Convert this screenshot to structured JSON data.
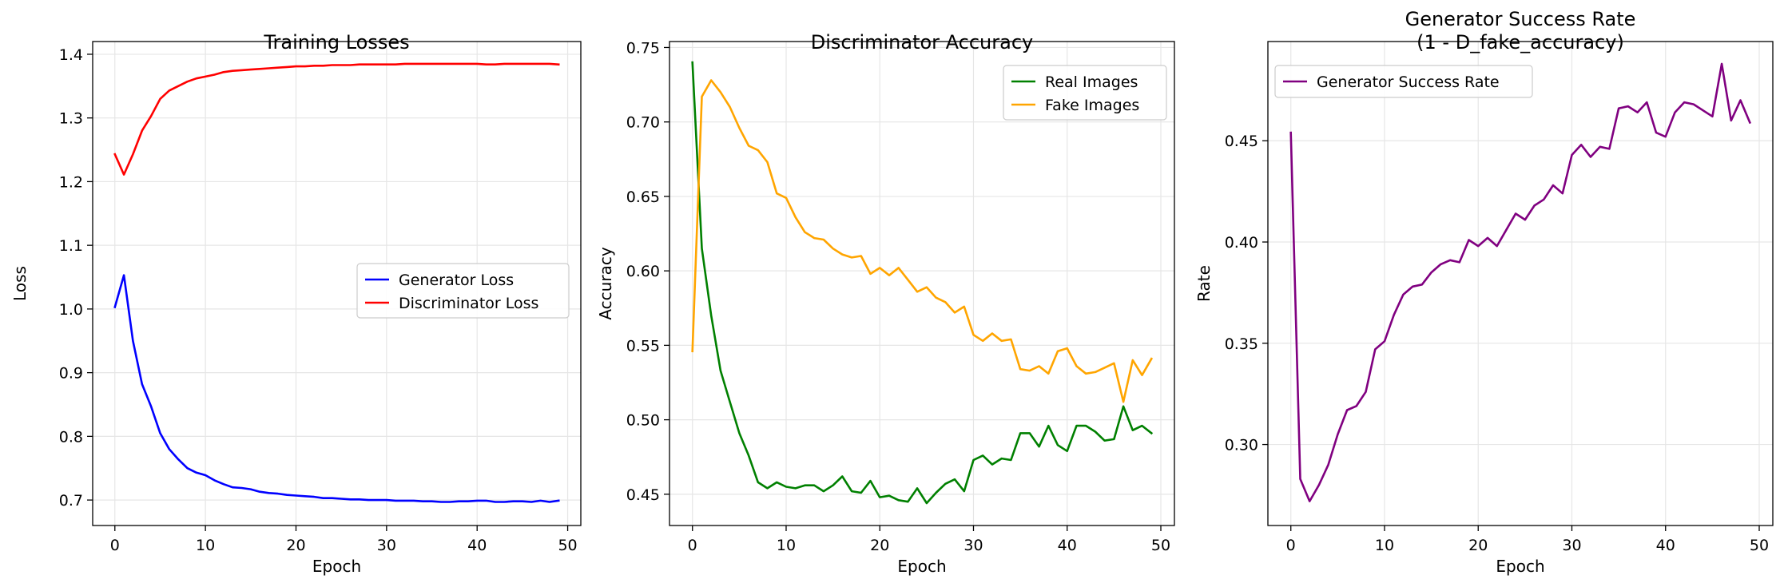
{
  "chart_data": [
    {
      "type": "line",
      "title": "Training Losses",
      "xlabel": "Epoch",
      "ylabel": "Loss",
      "xlim": [
        -2.45,
        51.45
      ],
      "ylim": [
        0.66,
        1.42
      ],
      "xticks": [
        0,
        10,
        20,
        30,
        40,
        50
      ],
      "yticks": [
        0.7,
        0.8,
        0.9,
        1.0,
        1.1,
        1.2,
        1.3,
        1.4
      ],
      "grid": true,
      "legend": "center-right",
      "x": [
        0,
        1,
        2,
        3,
        4,
        5,
        6,
        7,
        8,
        9,
        10,
        11,
        12,
        13,
        14,
        15,
        16,
        17,
        18,
        19,
        20,
        21,
        22,
        23,
        24,
        25,
        26,
        27,
        28,
        29,
        30,
        31,
        32,
        33,
        34,
        35,
        36,
        37,
        38,
        39,
        40,
        41,
        42,
        43,
        44,
        45,
        46,
        47,
        48,
        49
      ],
      "series": [
        {
          "name": "Generator Loss",
          "color": "#0000ff",
          "values": [
            1.003,
            1.053,
            0.95,
            0.882,
            0.847,
            0.805,
            0.78,
            0.764,
            0.75,
            0.743,
            0.739,
            0.731,
            0.725,
            0.72,
            0.719,
            0.717,
            0.713,
            0.711,
            0.71,
            0.708,
            0.707,
            0.706,
            0.705,
            0.703,
            0.703,
            0.702,
            0.701,
            0.701,
            0.7,
            0.7,
            0.7,
            0.699,
            0.699,
            0.699,
            0.698,
            0.698,
            0.697,
            0.697,
            0.698,
            0.698,
            0.699,
            0.699,
            0.697,
            0.697,
            0.698,
            0.698,
            0.697,
            0.699,
            0.697,
            0.699
          ]
        },
        {
          "name": "Discriminator Loss",
          "color": "#ff0000",
          "values": [
            1.243,
            1.211,
            1.243,
            1.28,
            1.303,
            1.33,
            1.343,
            1.35,
            1.357,
            1.362,
            1.365,
            1.368,
            1.372,
            1.374,
            1.375,
            1.376,
            1.377,
            1.378,
            1.379,
            1.38,
            1.381,
            1.381,
            1.382,
            1.382,
            1.383,
            1.383,
            1.383,
            1.384,
            1.384,
            1.384,
            1.384,
            1.384,
            1.385,
            1.385,
            1.385,
            1.385,
            1.385,
            1.385,
            1.385,
            1.385,
            1.385,
            1.384,
            1.384,
            1.385,
            1.385,
            1.385,
            1.385,
            1.385,
            1.385,
            1.384
          ]
        }
      ]
    },
    {
      "type": "line",
      "title": "Discriminator Accuracy",
      "xlabel": "Epoch",
      "ylabel": "Accuracy",
      "xlim": [
        -2.45,
        51.45
      ],
      "ylim": [
        0.429,
        0.754
      ],
      "xticks": [
        0,
        10,
        20,
        30,
        40,
        50
      ],
      "yticks": [
        0.45,
        0.5,
        0.55,
        0.6,
        0.65,
        0.7,
        0.75
      ],
      "grid": true,
      "legend": "top-right",
      "x": [
        0,
        1,
        2,
        3,
        4,
        5,
        6,
        7,
        8,
        9,
        10,
        11,
        12,
        13,
        14,
        15,
        16,
        17,
        18,
        19,
        20,
        21,
        22,
        23,
        24,
        25,
        26,
        27,
        28,
        29,
        30,
        31,
        32,
        33,
        34,
        35,
        36,
        37,
        38,
        39,
        40,
        41,
        42,
        43,
        44,
        45,
        46,
        47,
        48,
        49
      ],
      "series": [
        {
          "name": "Real Images",
          "color": "#008000",
          "values": [
            0.74,
            0.615,
            0.57,
            0.533,
            0.512,
            0.491,
            0.476,
            0.458,
            0.454,
            0.458,
            0.455,
            0.454,
            0.456,
            0.456,
            0.452,
            0.456,
            0.462,
            0.452,
            0.451,
            0.459,
            0.448,
            0.449,
            0.446,
            0.445,
            0.454,
            0.444,
            0.451,
            0.457,
            0.46,
            0.452,
            0.473,
            0.476,
            0.47,
            0.474,
            0.473,
            0.491,
            0.491,
            0.482,
            0.496,
            0.483,
            0.479,
            0.496,
            0.496,
            0.492,
            0.486,
            0.487,
            0.509,
            0.493,
            0.496,
            0.491
          ]
        },
        {
          "name": "Fake Images",
          "color": "#ffa500",
          "values": [
            0.546,
            0.717,
            0.728,
            0.72,
            0.71,
            0.696,
            0.684,
            0.681,
            0.673,
            0.652,
            0.649,
            0.636,
            0.626,
            0.622,
            0.621,
            0.615,
            0.611,
            0.609,
            0.61,
            0.598,
            0.602,
            0.597,
            0.602,
            0.594,
            0.586,
            0.589,
            0.582,
            0.579,
            0.572,
            0.576,
            0.557,
            0.553,
            0.558,
            0.553,
            0.554,
            0.534,
            0.533,
            0.536,
            0.531,
            0.546,
            0.548,
            0.536,
            0.531,
            0.532,
            0.535,
            0.538,
            0.512,
            0.54,
            0.53,
            0.541
          ]
        }
      ]
    },
    {
      "type": "line",
      "title": "Generator Success Rate\n(1 - D_fake_accuracy)",
      "xlabel": "Epoch",
      "ylabel": "Rate",
      "xlim": [
        -2.45,
        51.45
      ],
      "ylim": [
        0.26,
        0.499
      ],
      "xticks": [
        0,
        10,
        20,
        30,
        40,
        50
      ],
      "yticks": [
        0.3,
        0.35,
        0.4,
        0.45
      ],
      "grid": true,
      "legend": "top-left",
      "x": [
        0,
        1,
        2,
        3,
        4,
        5,
        6,
        7,
        8,
        9,
        10,
        11,
        12,
        13,
        14,
        15,
        16,
        17,
        18,
        19,
        20,
        21,
        22,
        23,
        24,
        25,
        26,
        27,
        28,
        29,
        30,
        31,
        32,
        33,
        34,
        35,
        36,
        37,
        38,
        39,
        40,
        41,
        42,
        43,
        44,
        45,
        46,
        47,
        48,
        49
      ],
      "series": [
        {
          "name": "Generator Success Rate",
          "color": "#800080",
          "values": [
            0.454,
            0.283,
            0.272,
            0.28,
            0.29,
            0.305,
            0.317,
            0.319,
            0.326,
            0.347,
            0.351,
            0.364,
            0.374,
            0.378,
            0.379,
            0.385,
            0.389,
            0.391,
            0.39,
            0.401,
            0.398,
            0.402,
            0.398,
            0.406,
            0.414,
            0.411,
            0.418,
            0.421,
            0.428,
            0.424,
            0.443,
            0.448,
            0.442,
            0.447,
            0.446,
            0.466,
            0.467,
            0.464,
            0.469,
            0.454,
            0.452,
            0.464,
            0.469,
            0.468,
            0.465,
            0.462,
            0.488,
            0.46,
            0.47,
            0.459
          ]
        }
      ]
    }
  ]
}
